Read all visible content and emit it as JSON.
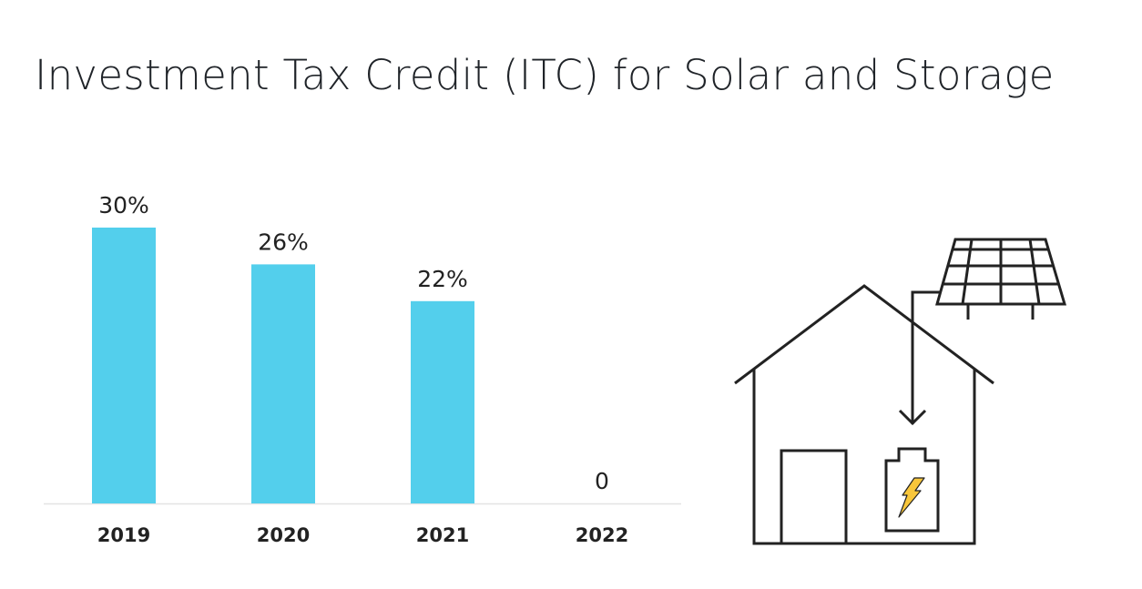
{
  "chart_data": {
    "type": "bar",
    "title": "Investment Tax Credit (ITC) for Solar and Storage",
    "categories": [
      "2019",
      "2020",
      "2021",
      "2022"
    ],
    "values": [
      30,
      26,
      22,
      0
    ],
    "data_labels": [
      "30%",
      "26%",
      "22%",
      "0"
    ],
    "xlabel": "",
    "ylabel": "",
    "ylim": [
      0,
      30
    ],
    "grid": false,
    "bar_color": "#53cfec"
  },
  "illustration": {
    "description_icons": [
      "house-icon",
      "solar-panel-icon",
      "battery-icon",
      "lightning-bolt-icon",
      "arrow-down-icon"
    ],
    "bolt_color": "#f8c63b",
    "line_color": "#222222"
  }
}
